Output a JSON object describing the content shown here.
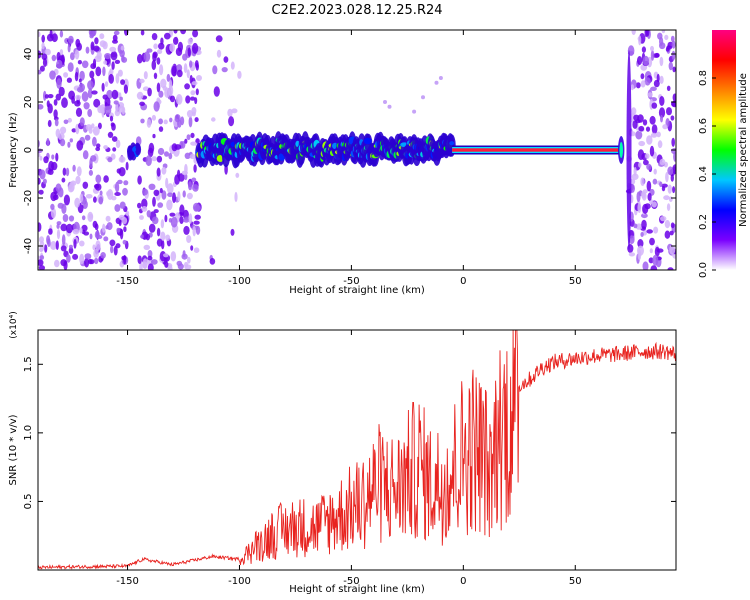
{
  "figure": {
    "title": "C2E2.2023.028.12.25.R24"
  },
  "chart_data": [
    {
      "type": "heatmap",
      "xlabel": "Height of straight line (km)",
      "ylabel": "Frequency (Hz)",
      "xlim": [
        -190,
        95
      ],
      "ylim": [
        -50,
        50
      ],
      "xticks": [
        -150,
        -100,
        -50,
        0,
        50
      ],
      "yticks": [
        -40,
        -20,
        0,
        20,
        40
      ],
      "colorbar": {
        "label": "Normalized spectral amplitude",
        "range": [
          0,
          1
        ],
        "ticks": [
          0.0,
          0.2,
          0.4,
          0.6,
          0.8
        ],
        "tick_labels": [
          "0.0",
          "0.2",
          "0.4",
          "0.6",
          "0.8"
        ],
        "colormap": [
          "#ffffff",
          "#7a00ff",
          "#0000ff",
          "#00c8ff",
          "#00ff00",
          "#ffff00",
          "#ff8000",
          "#ff0000",
          "#ff0080"
        ]
      },
      "signal_band": {
        "center_frequency_hz": 0,
        "start_km": -118,
        "strong_start_km": -5,
        "end_km": 70
      },
      "grid": false
    },
    {
      "type": "line",
      "xlabel": "Height of straight line (km)",
      "ylabel": "SNR (10 * v/v)",
      "y_multiplier": "(x10⁴)",
      "xlim": [
        -190,
        95
      ],
      "ylim": [
        0,
        1.75
      ],
      "xticks": [
        -150,
        -100,
        -50,
        0,
        50
      ],
      "yticks": [
        0.5,
        1.0,
        1.5
      ],
      "ytick_labels": [
        "0.5",
        "1.0",
        "1.5"
      ],
      "series": [
        {
          "color": "#e8231f",
          "x": [
            -190,
            -150,
            -143,
            -130,
            -112,
            -100,
            -92,
            -85,
            -75,
            -65,
            -55,
            -45,
            -38,
            -30,
            -20,
            -15,
            -10,
            -5,
            0,
            5,
            10,
            12,
            15,
            20,
            25,
            30,
            35,
            40,
            50,
            60,
            70,
            80,
            90,
            95
          ],
          "values": [
            0.02,
            0.03,
            0.08,
            0.04,
            0.1,
            0.08,
            0.2,
            0.3,
            0.35,
            0.35,
            0.45,
            0.55,
            0.7,
            0.65,
            0.85,
            0.7,
            0.7,
            0.8,
            0.95,
            1.0,
            0.9,
            0.7,
            1.1,
            1.2,
            1.35,
            1.4,
            1.48,
            1.52,
            1.55,
            1.57,
            1.58,
            1.6,
            1.6,
            1.58
          ]
        }
      ],
      "grid": false
    }
  ]
}
